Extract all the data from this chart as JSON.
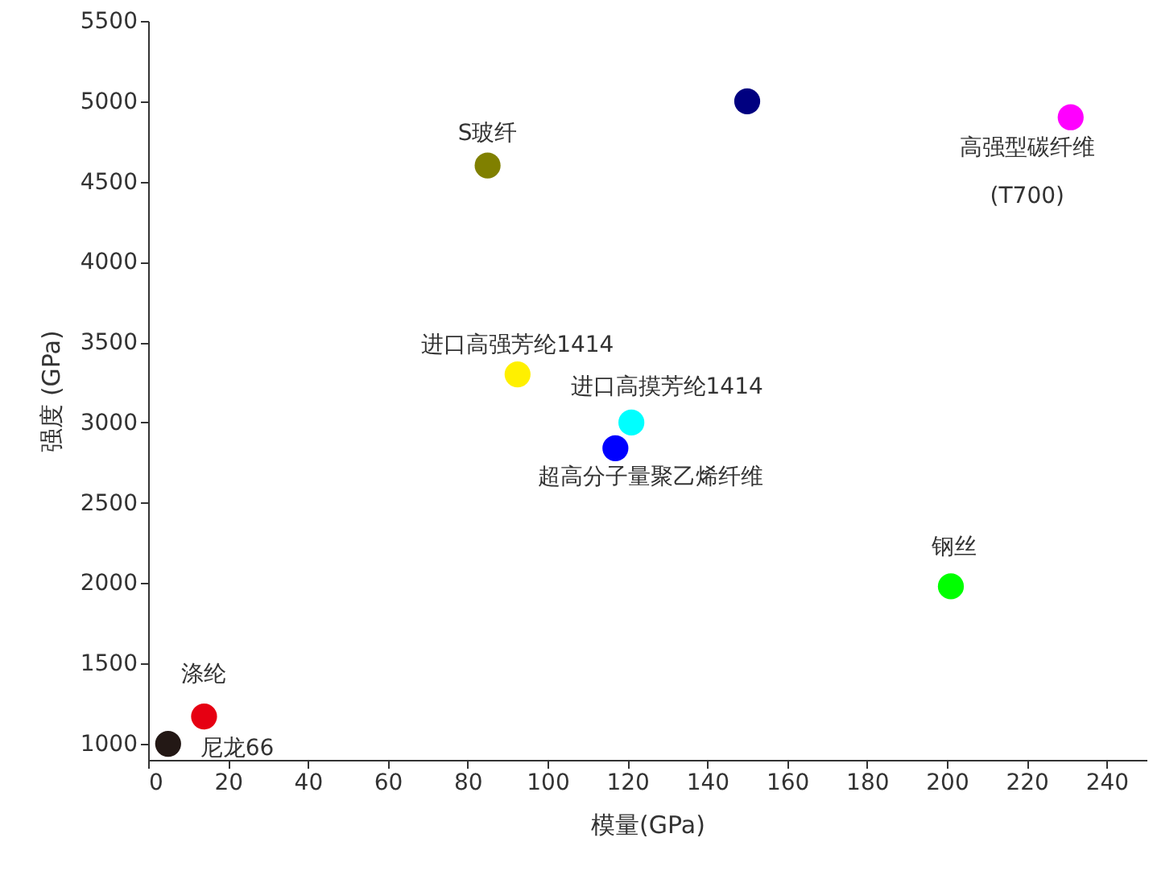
{
  "chart_data": {
    "type": "scatter",
    "xlabel": "模量(GPa)",
    "ylabel": "强度 (GPa)",
    "xlim": [
      0,
      250
    ],
    "ylim": [
      900,
      5500
    ],
    "xticks": [
      0,
      20,
      40,
      60,
      80,
      100,
      120,
      140,
      160,
      180,
      200,
      220,
      240
    ],
    "yticks": [
      1000,
      1500,
      2000,
      2500,
      3000,
      3500,
      4000,
      4500,
      5000,
      5500
    ],
    "grid": false,
    "marker": "circle",
    "series": [
      {
        "x": [
          5,
          14,
          85,
          92.5,
          121,
          117,
          150,
          231,
          201
        ],
        "values": [
          1000,
          1170,
          4600,
          3300,
          3000,
          2840,
          5000,
          4900,
          1980
        ],
        "colors": [
          "#231815",
          "#e60012",
          "#808000",
          "#fff000",
          "#00ffff",
          "#0000ff",
          "#000080",
          "#ff00ff",
          "#00ff00"
        ]
      }
    ],
    "annotations": [
      {
        "text": "尼龙66",
        "x": 5,
        "y": 1000
      },
      {
        "text": "涤纶",
        "x": 14,
        "y": 1170
      },
      {
        "text": "S玻纤",
        "x": 85,
        "y": 4600
      },
      {
        "text": "进口高强芳纶1414",
        "x": 92.5,
        "y": 3300
      },
      {
        "text": "进口高摸芳纶1414",
        "x": 121,
        "y": 3000
      },
      {
        "text": "超高分子量聚乙烯纤维",
        "x": 117,
        "y": 2840
      },
      {
        "text": "高强型碳纤维\n(T700)",
        "x": 231,
        "y": 4900
      },
      {
        "text": "钢丝",
        "x": 201,
        "y": 1980
      }
    ]
  }
}
